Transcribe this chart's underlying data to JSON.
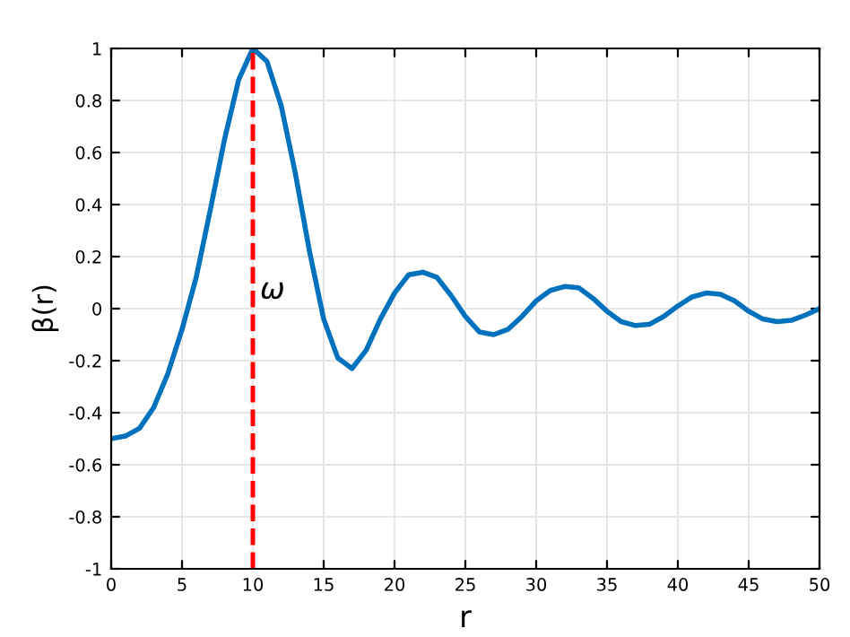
{
  "chart_data": {
    "type": "line",
    "xlabel": "r",
    "ylabel": "β(r)",
    "x": [
      0,
      1,
      2,
      3,
      4,
      5,
      6,
      7,
      8,
      9,
      10,
      11,
      12,
      13,
      14,
      15,
      16,
      17,
      18,
      19,
      20,
      21,
      22,
      23,
      24,
      25,
      26,
      27,
      28,
      29,
      30,
      31,
      32,
      33,
      34,
      35,
      36,
      37,
      38,
      39,
      40,
      41,
      42,
      43,
      44,
      45,
      46,
      47,
      48,
      49,
      50
    ],
    "series": [
      {
        "color": "#0072bd",
        "values": [
          -0.5,
          -0.49,
          -0.46,
          -0.38,
          -0.25,
          -0.08,
          0.12,
          0.38,
          0.65,
          0.88,
          1.0,
          0.95,
          0.78,
          0.52,
          0.22,
          -0.04,
          -0.19,
          -0.23,
          -0.16,
          -0.04,
          0.06,
          0.13,
          0.14,
          0.12,
          0.05,
          -0.03,
          -0.09,
          -0.1,
          -0.08,
          -0.03,
          0.03,
          0.07,
          0.085,
          0.08,
          0.04,
          -0.01,
          -0.05,
          -0.065,
          -0.06,
          -0.03,
          0.01,
          0.045,
          0.06,
          0.055,
          0.03,
          -0.01,
          -0.04,
          -0.05,
          -0.045,
          -0.025,
          0.0
        ]
      }
    ],
    "ref_lines": [
      {
        "axis": "x",
        "value": 10,
        "label": "ω",
        "color": "#ff0000",
        "line_style": "dashed"
      }
    ],
    "xlim": [
      0,
      50
    ],
    "ylim": [
      -1,
      1
    ],
    "xticks": [
      0,
      5,
      10,
      15,
      20,
      25,
      30,
      35,
      40,
      45,
      50
    ],
    "yticks": [
      -1,
      -0.8,
      -0.6,
      -0.4,
      -0.2,
      0,
      0.2,
      0.4,
      0.6,
      0.8,
      1
    ],
    "grid": true,
    "line_style": "solid",
    "marker": "none"
  }
}
